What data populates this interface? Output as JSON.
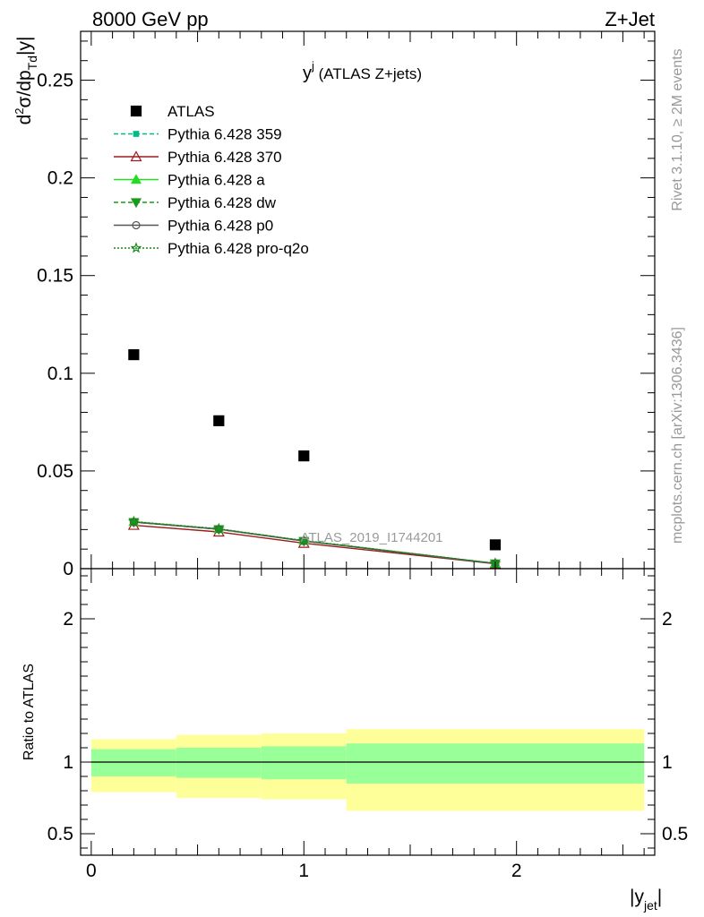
{
  "header": {
    "left_title": "8000 GeV pp",
    "right_title": "Z+Jet",
    "plot_title_main": "y",
    "plot_title_sup": "j",
    "plot_title_rest": " (ATLAS Z+jets)",
    "watermark": "ATLAS_2019_I1744201",
    "side_rivet": "Rivet 3.1.10, ≥ 2M events",
    "side_mcplots": "mcplots.cern.ch [arXiv:1306.3436]"
  },
  "chart_data": [
    {
      "type": "scatter",
      "panel": "main",
      "ylabel": "d²σ/dp_Td|y|",
      "xlim": [
        -0.05,
        2.65
      ],
      "ylim": [
        0,
        0.275
      ],
      "yticks": [
        0,
        0.05,
        0.1,
        0.15,
        0.2,
        0.25
      ],
      "ytick_labels": [
        "0",
        "0.05",
        "0.1",
        "0.15",
        "0.2",
        "0.25"
      ],
      "x": [
        0.2,
        0.6,
        1.0,
        1.9
      ],
      "series": [
        {
          "name": "ATLAS",
          "values": [
            0.1095,
            0.0757,
            0.0577,
            0.0122
          ],
          "color": "#000000",
          "marker": "square",
          "line": "none"
        },
        {
          "name": "Pythia 6.428 359",
          "values": [
            0.0239,
            0.0202,
            0.0142,
            0.0027
          ],
          "color": "#00bb88",
          "marker": "small-square",
          "line": "dashed"
        },
        {
          "name": "Pythia 6.428 370",
          "values": [
            0.0222,
            0.0188,
            0.013,
            0.0025
          ],
          "color": "#9b1b1b",
          "marker": "open-triangle",
          "line": "solid"
        },
        {
          "name": "Pythia 6.428 a",
          "values": [
            0.024,
            0.0203,
            0.0143,
            0.0027
          ],
          "color": "#22dd22",
          "marker": "triangle",
          "line": "solid"
        },
        {
          "name": "Pythia 6.428 dw",
          "values": [
            0.0238,
            0.0201,
            0.0141,
            0.0026
          ],
          "color": "#1a9a1a",
          "marker": "down-triangle",
          "line": "dashed"
        },
        {
          "name": "Pythia 6.428 p0",
          "values": [
            0.0238,
            0.0202,
            0.0141,
            0.0026
          ],
          "color": "#555555",
          "marker": "open-circle",
          "line": "solid"
        },
        {
          "name": "Pythia 6.428 pro-q2o",
          "values": [
            0.0241,
            0.0204,
            0.0144,
            0.0027
          ],
          "color": "#1a8a1a",
          "marker": "open-star",
          "line": "dotted"
        }
      ],
      "legend_position": "top-left"
    },
    {
      "type": "area",
      "panel": "ratio",
      "xlabel": "|y_jet|",
      "ylabel": "Ratio to ATLAS",
      "xlim": [
        -0.05,
        2.65
      ],
      "ylim": [
        0.35,
        2.35
      ],
      "xticks": [
        0,
        1,
        2
      ],
      "xtick_labels": [
        "0",
        "1",
        "2"
      ],
      "yticks": [
        0.5,
        1,
        2
      ],
      "ytick_labels": [
        "0.5",
        "1",
        "2"
      ],
      "reference_line": 1,
      "bins": [
        {
          "xlo": 0.0,
          "xhi": 0.4,
          "stat_lo": 0.9,
          "stat_hi": 1.09,
          "total_lo": 0.79,
          "total_hi": 1.16
        },
        {
          "xlo": 0.4,
          "xhi": 0.8,
          "stat_lo": 0.89,
          "stat_hi": 1.1,
          "total_lo": 0.75,
          "total_hi": 1.19
        },
        {
          "xlo": 0.8,
          "xhi": 1.2,
          "stat_lo": 0.88,
          "stat_hi": 1.11,
          "total_lo": 0.74,
          "total_hi": 1.2
        },
        {
          "xlo": 1.2,
          "xhi": 2.6,
          "stat_lo": 0.85,
          "stat_hi": 1.13,
          "total_lo": 0.66,
          "total_hi": 1.23
        }
      ],
      "band_colors": {
        "total": "#ffff99",
        "stat": "#99ff99"
      }
    }
  ]
}
